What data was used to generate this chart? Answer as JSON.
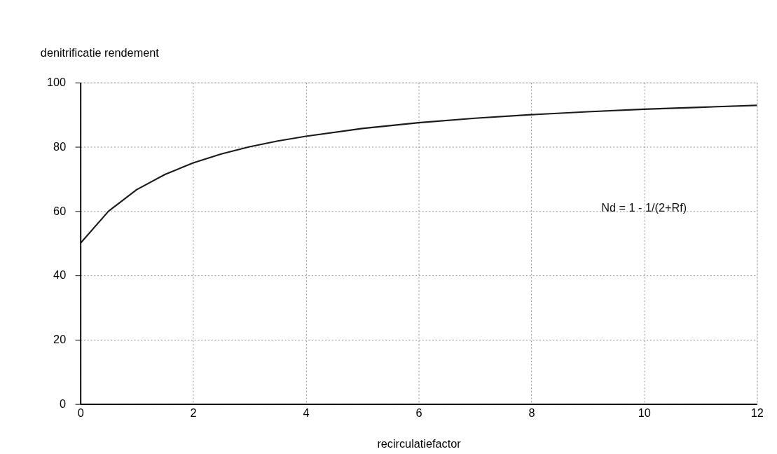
{
  "chart_data": {
    "type": "line",
    "xlabel": "recirculatiefactor",
    "ylabel": "denitrificatie rendement",
    "x": [
      0,
      0.5,
      1,
      1.5,
      2,
      2.5,
      3,
      3.5,
      4,
      5,
      6,
      7,
      8,
      9,
      10,
      11,
      12
    ],
    "series": [
      {
        "color": "#1a1a1a",
        "values": [
          50,
          60,
          66.7,
          71.4,
          75,
          77.8,
          80,
          81.8,
          83.3,
          85.7,
          87.5,
          88.9,
          90,
          90.9,
          91.7,
          92.3,
          92.9
        ]
      }
    ],
    "xlim": [
      0,
      12
    ],
    "xticks": [
      0,
      2,
      4,
      6,
      8,
      10,
      12
    ],
    "ylim": [
      0,
      100
    ],
    "yticks": [
      0,
      20,
      40,
      60,
      80,
      100
    ],
    "grid": true,
    "legend": false,
    "marker": "none",
    "line_style": "solid",
    "annotations": [
      "Nd = 1 - 1/(2+Rf)"
    ]
  }
}
